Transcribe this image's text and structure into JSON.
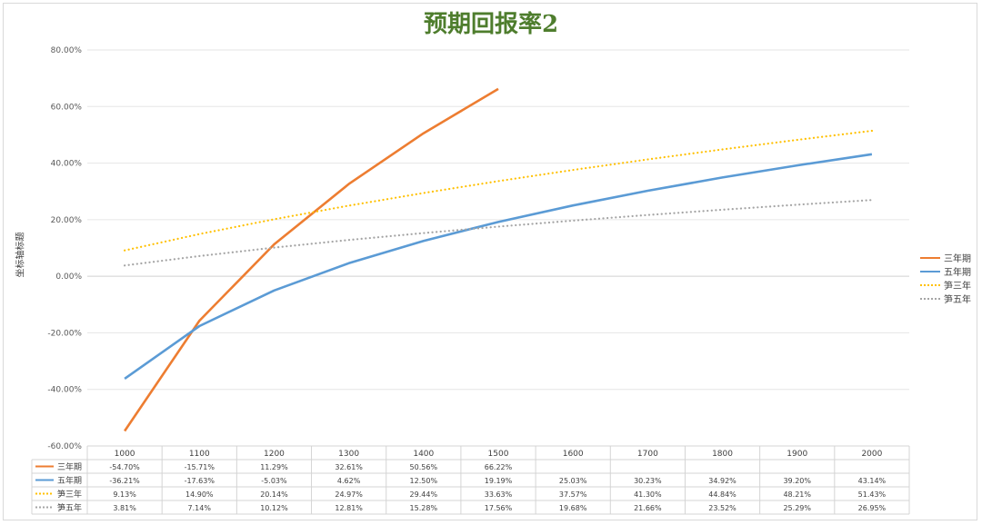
{
  "colors": {
    "title": "#4e7d2d",
    "grid": "#e6e6e6",
    "axis": "#d0d0d0",
    "table_border": "#d4d4d4"
  },
  "chart_data": {
    "type": "line",
    "title": "预期回报率2",
    "xlabel": "",
    "ylabel": "坐标轴标题",
    "x": [
      "1000",
      "1100",
      "1200",
      "1300",
      "1400",
      "1500",
      "1600",
      "1700",
      "1800",
      "1900",
      "2000"
    ],
    "ylim": [
      -60,
      80
    ],
    "y_ticks": [
      "80.00%",
      "60.00%",
      "40.00%",
      "20.00%",
      "0.00%",
      "-20.00%",
      "-40.00%",
      "-60.00%"
    ],
    "grid": true,
    "legend_position": "right",
    "data_table": true,
    "series": [
      {
        "name": "三年期",
        "color": "#ed7d31",
        "dash": "solid",
        "values": [
          -54.7,
          -15.71,
          11.29,
          32.61,
          50.56,
          66.22,
          null,
          null,
          null,
          null,
          null
        ],
        "labels": [
          "-54.70%",
          "-15.71%",
          "11.29%",
          "32.61%",
          "50.56%",
          "66.22%",
          "",
          "",
          "",
          "",
          ""
        ]
      },
      {
        "name": "五年期",
        "color": "#5b9bd5",
        "dash": "solid",
        "values": [
          -36.21,
          -17.63,
          -5.03,
          4.62,
          12.5,
          19.19,
          25.03,
          30.23,
          34.92,
          39.2,
          43.14
        ],
        "labels": [
          "-36.21%",
          "-17.63%",
          "-5.03%",
          "4.62%",
          "12.50%",
          "19.19%",
          "25.03%",
          "30.23%",
          "34.92%",
          "39.20%",
          "43.14%"
        ]
      },
      {
        "name": "笋三年",
        "color": "#ffc000",
        "dash": "dotted",
        "values": [
          9.13,
          14.9,
          20.14,
          24.97,
          29.44,
          33.63,
          37.57,
          41.3,
          44.84,
          48.21,
          51.43
        ],
        "labels": [
          "9.13%",
          "14.90%",
          "20.14%",
          "24.97%",
          "29.44%",
          "33.63%",
          "37.57%",
          "41.30%",
          "44.84%",
          "48.21%",
          "51.43%"
        ]
      },
      {
        "name": "笋五年",
        "color": "#a5a5a5",
        "dash": "dotted",
        "values": [
          3.81,
          7.14,
          10.12,
          12.81,
          15.28,
          17.56,
          19.68,
          21.66,
          23.52,
          25.29,
          26.95
        ],
        "labels": [
          "3.81%",
          "7.14%",
          "10.12%",
          "12.81%",
          "15.28%",
          "17.56%",
          "19.68%",
          "21.66%",
          "23.52%",
          "25.29%",
          "26.95%"
        ]
      }
    ]
  }
}
